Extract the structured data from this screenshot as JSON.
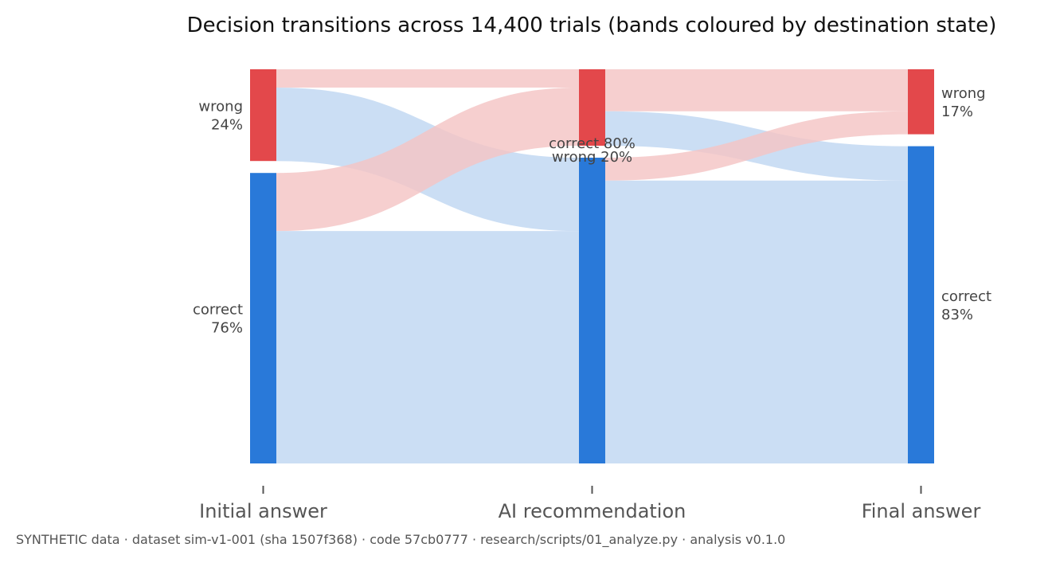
{
  "chart_data": {
    "type": "sankey",
    "title": "Decision transitions across 14,400 trials (bands coloured by destination state)",
    "footer": "SYNTHETIC data · dataset sim-v1-001 (sha 1507f368) · code 57cb0777 · research/scripts/01_analyze.py · analysis v0.1.0",
    "colors": {
      "wrong": "#e3484b",
      "correct": "#2979d9",
      "wrong_band": "#f4c4c5",
      "correct_band": "#c0d7f2"
    },
    "stages": [
      {
        "name": "Initial answer",
        "nodes": [
          {
            "state": "wrong",
            "share": 0.24,
            "line1": "wrong",
            "line2": "24%"
          },
          {
            "state": "correct",
            "share": 0.76,
            "line1": "correct",
            "line2": "76%"
          }
        ]
      },
      {
        "name": "AI recommendation",
        "nodes": [
          {
            "state": "wrong",
            "share": 0.2,
            "line1": "wrong 20%",
            "line2": ""
          },
          {
            "state": "correct",
            "share": 0.8,
            "line1": "correct 80%",
            "line2": ""
          }
        ]
      },
      {
        "name": "Final answer",
        "nodes": [
          {
            "state": "wrong",
            "share": 0.17,
            "line1": "wrong",
            "line2": "17%"
          },
          {
            "state": "correct",
            "share": 0.83,
            "line1": "correct",
            "line2": "83%"
          }
        ]
      }
    ],
    "flows": [
      {
        "from_stage": 0,
        "from": "wrong",
        "to": "wrong",
        "share": 0.048
      },
      {
        "from_stage": 0,
        "from": "wrong",
        "to": "correct",
        "share": 0.192
      },
      {
        "from_stage": 0,
        "from": "correct",
        "to": "wrong",
        "share": 0.152
      },
      {
        "from_stage": 0,
        "from": "correct",
        "to": "correct",
        "share": 0.608
      },
      {
        "from_stage": 1,
        "from": "wrong",
        "to": "wrong",
        "share": 0.11
      },
      {
        "from_stage": 1,
        "from": "wrong",
        "to": "correct",
        "share": 0.09
      },
      {
        "from_stage": 1,
        "from": "correct",
        "to": "wrong",
        "share": 0.06
      },
      {
        "from_stage": 1,
        "from": "correct",
        "to": "correct",
        "share": 0.74
      }
    ]
  }
}
